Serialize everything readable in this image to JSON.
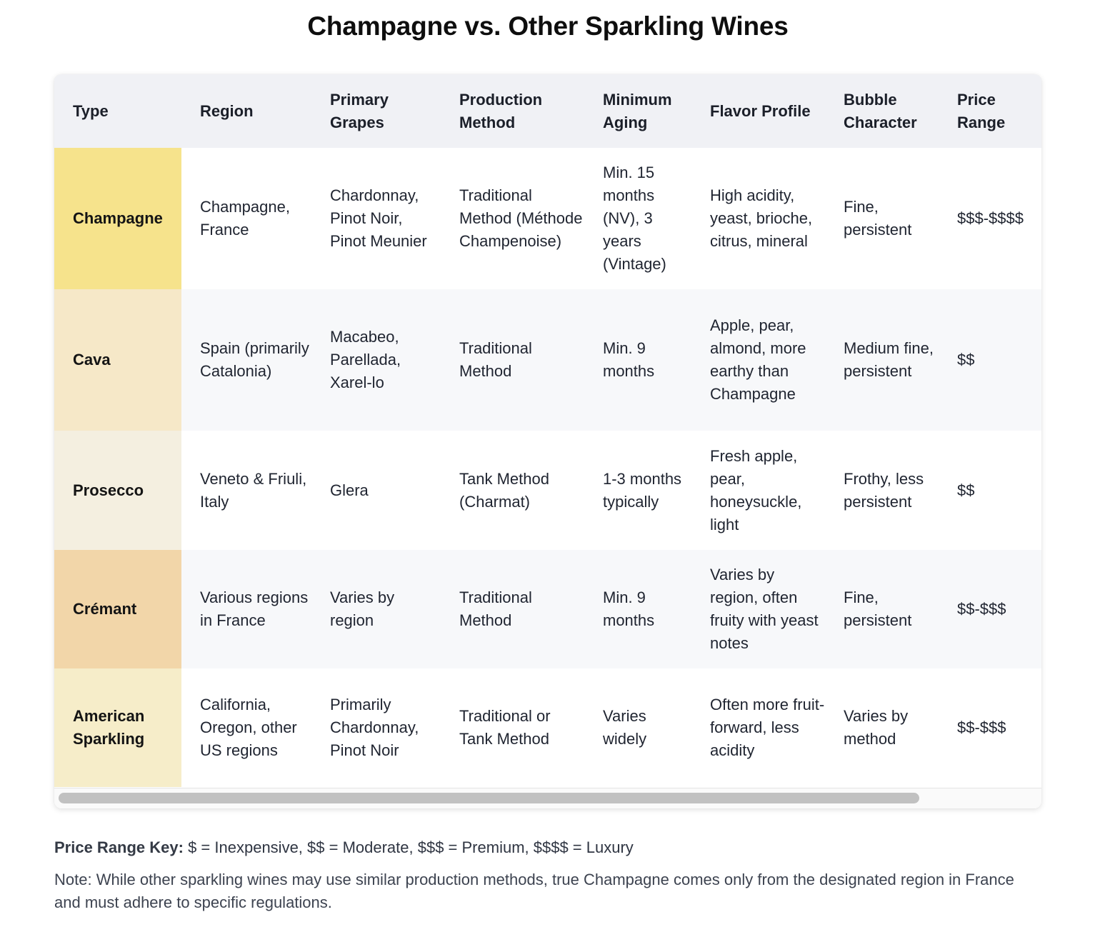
{
  "title": "Champagne vs. Other Sparkling Wines",
  "table": {
    "headers": {
      "type": "Type",
      "region": "Region",
      "grapes": "Primary Grapes",
      "method": "Production Method",
      "aging": "Minimum Aging",
      "flavor": "Flavor Profile",
      "bubble": "Bubble Character",
      "price": "Price Range"
    },
    "rows": [
      {
        "type": "Champagne",
        "region": "Champagne, France",
        "grapes": "Chardonnay, Pinot Noir, Pinot Meunier",
        "method": "Traditional Method (Méthode Champenoise)",
        "aging": "Min. 15 months (NV), 3 years (Vintage)",
        "flavor": "High acidity, yeast, brioche, citrus, mineral",
        "bubble": "Fine, persistent",
        "price": "$$$-$$$$",
        "swatch": "#f6e38c"
      },
      {
        "type": "Cava",
        "region": "Spain (primarily Catalonia)",
        "grapes": "Macabeo, Parellada, Xarel-lo",
        "method": "Traditional Method",
        "aging": "Min. 9 months",
        "flavor": "Apple, pear, almond, more earthy than Champagne",
        "bubble": "Medium fine, persistent",
        "price": "$$",
        "swatch": "#f6e8c8"
      },
      {
        "type": "Prosecco",
        "region": "Veneto & Friuli, Italy",
        "grapes": "Glera",
        "method": "Tank Method (Charmat)",
        "aging": "1-3 months typically",
        "flavor": "Fresh apple, pear, honeysuckle, light",
        "bubble": "Frothy, less persistent",
        "price": "$$",
        "swatch": "#f4efe0"
      },
      {
        "type": "Crémant",
        "region": "Various regions in France",
        "grapes": "Varies by region",
        "method": "Traditional Method",
        "aging": "Min. 9 months",
        "flavor": "Varies by region, often fruity with yeast notes",
        "bubble": "Fine, persistent",
        "price": "$$-$$$",
        "swatch": "#f2d6a9"
      },
      {
        "type": "American Sparkling",
        "region": "California, Oregon, other US regions",
        "grapes": "Primarily Chardonnay, Pinot Noir",
        "method": "Traditional or Tank Method",
        "aging": "Varies widely",
        "flavor": "Often more fruit-forward, less acidity",
        "bubble": "Varies by method",
        "price": "$$-$$$",
        "swatch": "#f6edc9"
      }
    ]
  },
  "scrollbar": {
    "horizontal_position": 0
  },
  "price_key": {
    "label": "Price Range Key:",
    "text": " $ = Inexpensive, $$ = Moderate, $$$ = Premium, $$$$ = Luxury"
  },
  "note": "Note: While other sparkling wines may use similar production methods, true Champagne comes only from the designated region in France and must adhere to specific regulations."
}
